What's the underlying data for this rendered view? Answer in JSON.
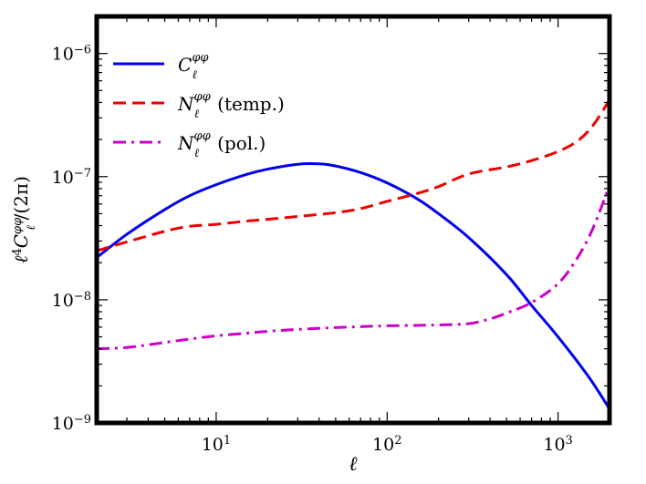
{
  "chart_data": {
    "type": "line",
    "title": "",
    "xlabel": "ℓ",
    "ylabel": "ℓ⁴ C_ℓ^{φφ} / (2π)",
    "xscale": "log",
    "yscale": "log",
    "xlim": [
      2,
      2000
    ],
    "ylim": [
      1e-09,
      2e-06
    ],
    "grid": false,
    "legend_position": "top-left",
    "x_ticks": [
      {
        "value": 10,
        "base": "10",
        "exp": "1"
      },
      {
        "value": 100,
        "base": "10",
        "exp": "2"
      },
      {
        "value": 1000,
        "base": "10",
        "exp": "3"
      }
    ],
    "y_ticks": [
      {
        "value": 1e-09,
        "base": "10",
        "exp": "−9"
      },
      {
        "value": 1e-08,
        "base": "10",
        "exp": "−8"
      },
      {
        "value": 1e-07,
        "base": "10",
        "exp": "−7"
      },
      {
        "value": 1e-06,
        "base": "10",
        "exp": "−6"
      }
    ],
    "series": [
      {
        "name": "C_ℓ^{φφ}",
        "legend_symbol": "C",
        "legend_suffix": "",
        "color": "#0000ee",
        "style": "solid",
        "x": [
          2,
          3,
          5,
          7,
          10,
          15,
          20,
          30,
          40,
          50,
          70,
          100,
          150,
          200,
          300,
          500,
          700,
          1000,
          1500,
          2000
        ],
        "y": [
          2.2e-08,
          3.4e-08,
          5.4e-08,
          7e-08,
          8.6e-08,
          1.04e-07,
          1.15e-07,
          1.26e-07,
          1.27e-07,
          1.22e-07,
          1.08e-07,
          8.9e-08,
          6.6e-08,
          5e-08,
          3.2e-08,
          1.6e-08,
          9e-09,
          5e-09,
          2.4e-09,
          1.3e-09
        ]
      },
      {
        "name": "N_ℓ^{φφ} (temp.)",
        "legend_symbol": "N",
        "legend_suffix": "(temp.)",
        "color": "#ee0000",
        "style": "dashed",
        "x": [
          2,
          3,
          5,
          7,
          10,
          15,
          20,
          30,
          50,
          70,
          100,
          150,
          200,
          300,
          500,
          700,
          1000,
          1300,
          1600,
          2000
        ],
        "y": [
          2.5e-08,
          2.95e-08,
          3.6e-08,
          3.95e-08,
          4.1e-08,
          4.35e-08,
          4.5e-08,
          4.75e-08,
          5.1e-08,
          5.5e-08,
          6.3e-08,
          7.3e-08,
          8.3e-08,
          1.05e-07,
          1.2e-07,
          1.35e-07,
          1.6e-07,
          1.95e-07,
          2.6e-07,
          4.2e-07
        ]
      },
      {
        "name": "N_ℓ^{φφ} (pol.)",
        "legend_symbol": "N",
        "legend_suffix": "(pol.)",
        "color": "#cc00cc",
        "style": "dashdot",
        "x": [
          2,
          3,
          5,
          7,
          10,
          15,
          20,
          30,
          50,
          70,
          100,
          150,
          200,
          300,
          400,
          500,
          700,
          1000,
          1300,
          1600,
          2000
        ],
        "y": [
          4e-09,
          4.1e-09,
          4.5e-09,
          4.8e-09,
          5.1e-09,
          5.35e-09,
          5.55e-09,
          5.75e-09,
          5.95e-09,
          6.05e-09,
          6.15e-09,
          6.2e-09,
          6.25e-09,
          6.4e-09,
          7e-09,
          7.8e-09,
          9.5e-09,
          1.35e-08,
          2.2e-08,
          3.8e-08,
          8.5e-08
        ]
      }
    ]
  }
}
